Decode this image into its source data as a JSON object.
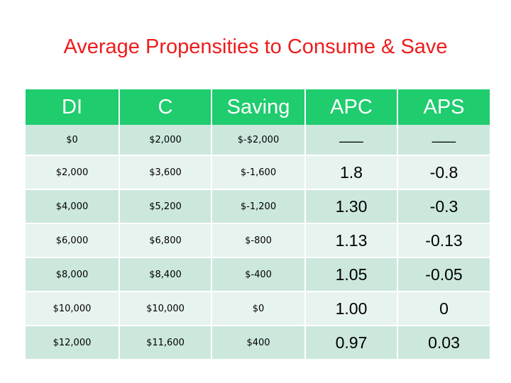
{
  "title": "Average Propensities to Consume & Save",
  "table": {
    "headers": [
      "DI",
      "C",
      "Saving",
      "APC",
      "APS"
    ],
    "rows": [
      [
        "$0",
        "$2,000",
        "$-$2,000",
        "___",
        "___"
      ],
      [
        "$2,000",
        "$3,600",
        "$-1,600",
        "1.8",
        "-0.8"
      ],
      [
        "$4,000",
        "$5,200",
        "$-1,200",
        "1.30",
        "-0.3"
      ],
      [
        "$6,000",
        "$6,800",
        "$-800",
        "1.13",
        "-0.13"
      ],
      [
        "$8,000",
        "$8,400",
        "$-400",
        "1.05",
        "-0.05"
      ],
      [
        "$10,000",
        "$10,000",
        "$0",
        "1.00",
        "0"
      ],
      [
        "$12,000",
        "$11,600",
        "$400",
        "0.97",
        "0.03"
      ]
    ]
  },
  "colors": {
    "title": "#ee1c1c",
    "header_bg": "#1fcc6e",
    "header_text": "#ffffff",
    "row_dark": "#cce8dd",
    "row_light": "#e7f3ee"
  }
}
